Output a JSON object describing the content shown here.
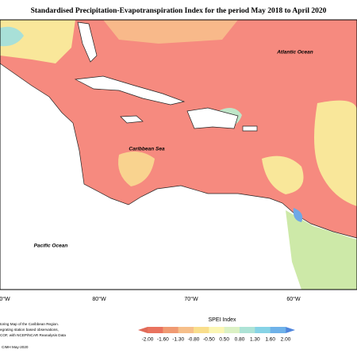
{
  "title": "Standardised Precipitation-Evapotranspiration Index for the period May 2018 to April 2020",
  "ocean_labels": {
    "atlantic": "Atlantic Ocean",
    "caribbean": "Caribbean Sea",
    "pacific": "Pacific Ocean"
  },
  "longitudes": [
    "0°W",
    "80°W",
    "70°W",
    "60°W"
  ],
  "legend": {
    "title": "SPEI Index",
    "ticks": [
      "-2.00",
      "-1.60",
      "-1.30",
      "-0.80",
      "-0.50",
      "0.50",
      "0.80",
      "1.30",
      "1.60",
      "2.00"
    ]
  },
  "footnote": [
    "toring Map of the Caribbean Region.",
    "egrating station based observations,",
    "COF, with NCEP/NCAR Reanalysis Data"
  ],
  "credit": "CIMH May-2020"
}
